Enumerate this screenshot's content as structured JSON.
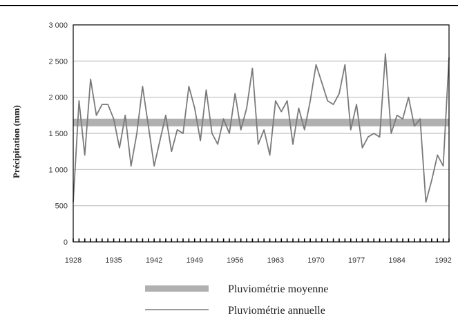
{
  "chart_data": {
    "type": "line",
    "title": "",
    "xlabel": "",
    "ylabel": "Précipitation (mm)",
    "xlim": [
      1928,
      1993
    ],
    "ylim": [
      0,
      3000
    ],
    "x_ticks": [
      "1928",
      "1935",
      "1942",
      "1949",
      "1956",
      "1963",
      "1970",
      "1977",
      "1984",
      "1992"
    ],
    "y_ticks": [
      "0",
      "500",
      "1 000",
      "1 500",
      "2 000",
      "2 500",
      "3 000"
    ],
    "grid": "horizontal",
    "legend_position": "bottom",
    "colors": {
      "annual": "#7a7a7a",
      "mean": "#b0b0b0",
      "grid": "#bdbdbd",
      "axis": "#000000"
    },
    "series": [
      {
        "name": "Pluviométrie annuelle",
        "style": "thin-line",
        "x": [
          1928,
          1929,
          1930,
          1931,
          1932,
          1933,
          1934,
          1935,
          1936,
          1937,
          1938,
          1939,
          1940,
          1941,
          1942,
          1943,
          1944,
          1945,
          1946,
          1947,
          1948,
          1949,
          1950,
          1951,
          1952,
          1953,
          1954,
          1955,
          1956,
          1957,
          1958,
          1959,
          1960,
          1961,
          1962,
          1963,
          1964,
          1965,
          1966,
          1967,
          1968,
          1969,
          1970,
          1971,
          1972,
          1973,
          1974,
          1975,
          1976,
          1977,
          1978,
          1979,
          1980,
          1981,
          1982,
          1983,
          1984,
          1985,
          1986,
          1987,
          1988,
          1989,
          1990,
          1991,
          1992,
          1993
        ],
        "y": [
          550,
          1950,
          1200,
          2250,
          1750,
          1900,
          1900,
          1700,
          1300,
          1750,
          1050,
          1500,
          2150,
          1600,
          1050,
          1400,
          1750,
          1250,
          1550,
          1500,
          2150,
          1850,
          1400,
          2100,
          1500,
          1350,
          1700,
          1500,
          2050,
          1550,
          1850,
          2400,
          1350,
          1550,
          1200,
          1950,
          1800,
          1950,
          1350,
          1850,
          1550,
          1950,
          2450,
          2200,
          1950,
          1900,
          2050,
          2450,
          1550,
          1900,
          1300,
          1450,
          1500,
          1450,
          2600,
          1500,
          1750,
          1700,
          2000,
          1600,
          1700,
          550,
          850,
          1200,
          1050,
          2550
        ]
      },
      {
        "name": "Pluviométrie moyenne",
        "style": "thick-band",
        "x": [
          1928,
          1993
        ],
        "y": [
          1650,
          1650
        ]
      }
    ]
  }
}
